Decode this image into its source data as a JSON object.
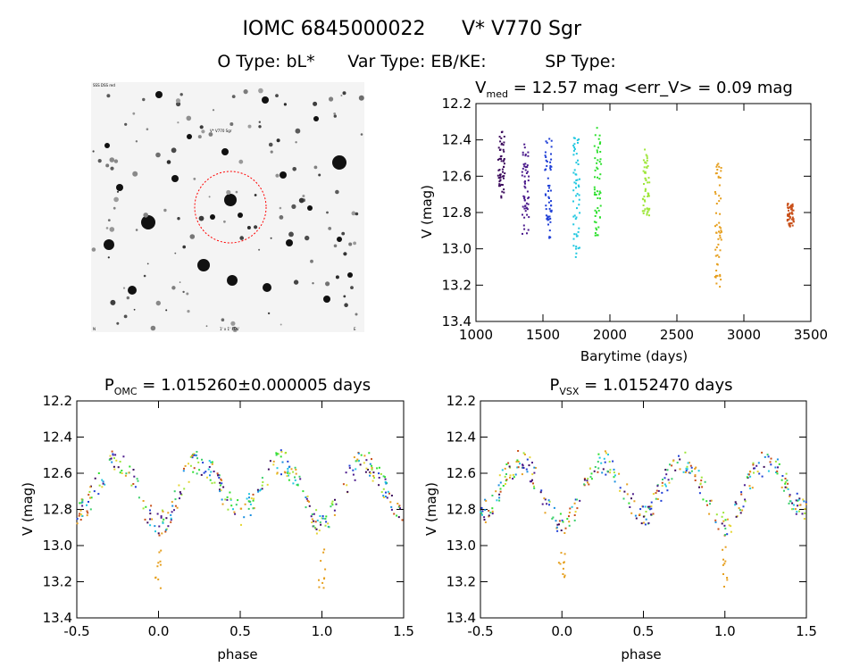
{
  "header": {
    "title_id": "IOMC 6845000022",
    "title_name": "V* V770 Sgr",
    "subtitle_otype": "O Type: bL*",
    "subtitle_vartype": "Var Type: EB/KE:",
    "subtitle_sptype": "SP Type:"
  },
  "colors": {
    "axes": "#000000",
    "circle": "#ff0000",
    "palette": [
      "#3b0a5c",
      "#4b1a8c",
      "#1f3fd6",
      "#1a8fe0",
      "#22c8e0",
      "#3ad06a",
      "#2fe02f",
      "#9ee63a",
      "#e6d633",
      "#e6a020",
      "#c9501a"
    ]
  },
  "image_panel": {
    "corner_top_left": "SSS DSS red",
    "red_label": "V* V770 Sgr",
    "corner_bottom_left": "N",
    "corner_bottom_mid": "1' x 1' FOV",
    "corner_bottom_right": "E"
  },
  "chart_data": [
    {
      "type": "scatter",
      "panel": "time",
      "title_prefix": "V",
      "title_sub": "med",
      "title_rest": " = 12.57 mag <err_V> = 0.09 mag",
      "xlabel": "Barytime (days)",
      "ylabel": "V (mag)",
      "xlim": [
        1000,
        3500
      ],
      "ylim": [
        12.2,
        13.4
      ],
      "y_inverted": true,
      "xticks": [
        1000,
        1500,
        2000,
        2500,
        3000,
        3500
      ],
      "yticks": [
        12.2,
        12.4,
        12.6,
        12.8,
        13.0,
        13.2,
        13.4
      ],
      "xtick_labels": [
        "1000",
        "1500",
        "2000",
        "2500",
        "3000",
        "3500"
      ],
      "ytick_labels": [
        "12.2",
        "12.4",
        "12.6",
        "12.8",
        "13.0",
        "13.2",
        "13.4"
      ],
      "grid": false,
      "groups": [
        {
          "t": 1190,
          "vmin": 12.35,
          "vmax": 12.72,
          "color": "#3b0a5c"
        },
        {
          "t": 1370,
          "vmin": 12.42,
          "vmax": 12.93,
          "color": "#4b1a8c"
        },
        {
          "t": 1540,
          "vmin": 12.38,
          "vmax": 12.95,
          "color": "#1f3fd6"
        },
        {
          "t": 1750,
          "vmin": 12.38,
          "vmax": 13.05,
          "color": "#22c8e0"
        },
        {
          "t": 1910,
          "vmin": 12.33,
          "vmax": 12.95,
          "color": "#2fe02f"
        },
        {
          "t": 2270,
          "vmin": 12.45,
          "vmax": 12.82,
          "color": "#9ee63a"
        },
        {
          "t": 2810,
          "vmin": 12.53,
          "vmax": 13.23,
          "color": "#e6a020"
        },
        {
          "t": 3350,
          "vmin": 12.75,
          "vmax": 12.88,
          "color": "#c9501a"
        }
      ]
    },
    {
      "type": "scatter",
      "panel": "phase_omc",
      "title_prefix": "P",
      "title_sub": "OMC",
      "title_rest": " = 1.015260±0.000005 days",
      "period_days": 1.01526,
      "xlabel": "phase",
      "ylabel": "V (mag)",
      "xlim": [
        -0.5,
        1.5
      ],
      "ylim": [
        12.2,
        13.4
      ],
      "y_inverted": true,
      "xticks": [
        -0.5,
        0.0,
        0.5,
        1.0,
        1.5
      ],
      "yticks": [
        12.2,
        12.4,
        12.6,
        12.8,
        13.0,
        13.2,
        13.4
      ],
      "xtick_labels": [
        "-0.5",
        "0.0",
        "0.5",
        "1.0",
        "1.5"
      ],
      "ytick_labels": [
        "12.2",
        "12.4",
        "12.6",
        "12.8",
        "13.0",
        "13.2",
        "13.4"
      ],
      "grid": false,
      "light_curve": {
        "max_mag": 12.45,
        "primary_min_mag": 12.88,
        "secondary_min_mag": 12.82,
        "primary_phase": 0.0,
        "secondary_phase": 0.5
      },
      "outliers": [
        {
          "phase": 0.0,
          "vmin": 13.0,
          "vmax": 13.24,
          "color": "#e6a020"
        },
        {
          "phase": 1.0,
          "vmin": 13.0,
          "vmax": 13.24,
          "color": "#e6a020"
        }
      ]
    },
    {
      "type": "scatter",
      "panel": "phase_vsx",
      "title_prefix": "P",
      "title_sub": "VSX",
      "title_rest": " = 1.0152470 days",
      "period_days": 1.015247,
      "xlabel": "phase",
      "ylabel": "V (mag)",
      "xlim": [
        -0.5,
        1.5
      ],
      "ylim": [
        12.2,
        13.4
      ],
      "y_inverted": true,
      "xticks": [
        -0.5,
        0.0,
        0.5,
        1.0,
        1.5
      ],
      "yticks": [
        12.2,
        12.4,
        12.6,
        12.8,
        13.0,
        13.2,
        13.4
      ],
      "xtick_labels": [
        "-0.5",
        "0.0",
        "0.5",
        "1.0",
        "1.5"
      ],
      "ytick_labels": [
        "12.2",
        "12.4",
        "12.6",
        "12.8",
        "13.0",
        "13.2",
        "13.4"
      ],
      "grid": false,
      "light_curve": {
        "max_mag": 12.45,
        "primary_min_mag": 12.88,
        "secondary_min_mag": 12.82,
        "primary_phase": 0.0,
        "secondary_phase": 0.5
      },
      "outliers": [
        {
          "phase": 0.0,
          "vmin": 13.0,
          "vmax": 13.24,
          "color": "#e6a020"
        },
        {
          "phase": 1.0,
          "vmin": 13.0,
          "vmax": 13.24,
          "color": "#e6a020"
        }
      ]
    }
  ]
}
